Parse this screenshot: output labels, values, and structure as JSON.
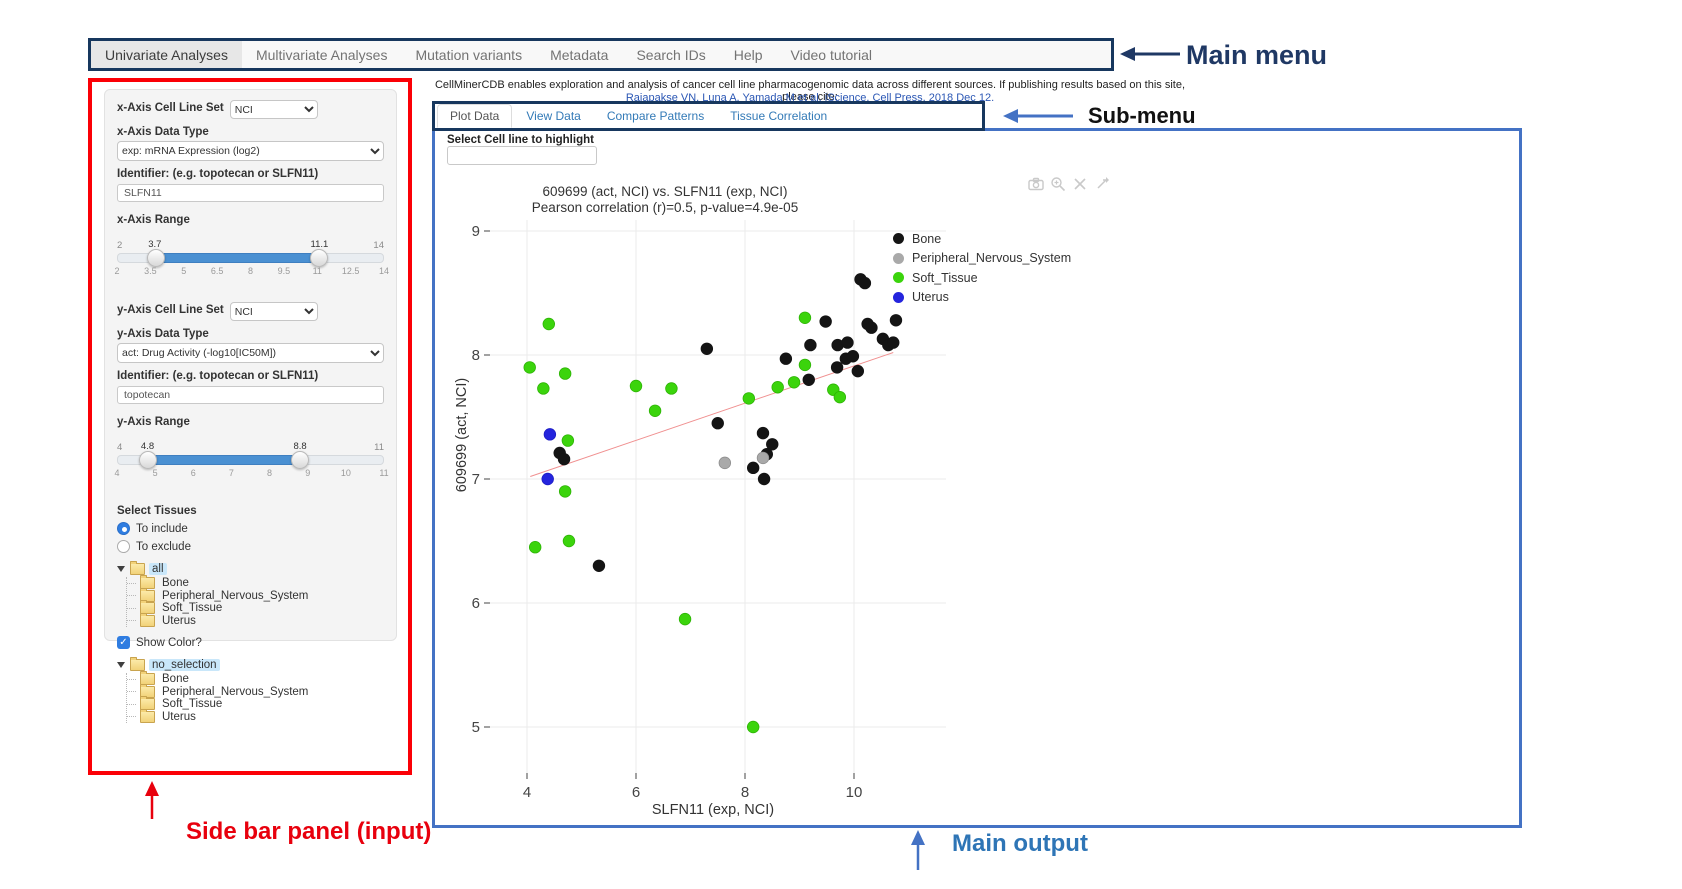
{
  "main_menu": {
    "annotation": "Main menu",
    "items": [
      {
        "label": "Univariate Analyses",
        "active": true
      },
      {
        "label": "Multivariate Analyses",
        "active": false
      },
      {
        "label": "Mutation variants",
        "active": false
      },
      {
        "label": "Metadata",
        "active": false
      },
      {
        "label": "Search IDs",
        "active": false
      },
      {
        "label": "Help",
        "active": false
      },
      {
        "label": "Video tutorial",
        "active": false
      }
    ]
  },
  "citation": {
    "line1": "CellMinerCDB enables exploration and analysis of cancer cell line pharmacogenomic data across different sources. If publishing results based on this site, please cite:",
    "line2": "Rajapakse VN, Luna A, Yamada M et al. iScience, Cell Press, 2018 Dec 12."
  },
  "submenu": {
    "annotation": "Sub-menu",
    "tabs": [
      {
        "label": "Plot Data",
        "active": true
      },
      {
        "label": "View Data",
        "active": false
      },
      {
        "label": "Compare Patterns",
        "active": false
      },
      {
        "label": "Tissue Correlation",
        "active": false
      }
    ]
  },
  "sidebar": {
    "annotation": "Side bar panel (input)",
    "x_axis": {
      "cell_line_set_label": "x-Axis Cell Line Set",
      "cell_line_set_value": "NCI",
      "data_type_label": "x-Axis Data Type",
      "data_type_value": "exp: mRNA Expression (log2)",
      "identifier_label": "Identifier: (e.g. topotecan or SLFN11)",
      "identifier_value": "SLFN11",
      "range_label": "x-Axis Range",
      "range": {
        "min": "2",
        "max": "14",
        "low": "3.7",
        "high": "11.1",
        "low_frac": 0.1417,
        "high_frac": 0.7583,
        "ticks": [
          "2",
          "3.5",
          "5",
          "6.5",
          "8",
          "9.5",
          "11",
          "12.5",
          "14"
        ]
      }
    },
    "y_axis": {
      "cell_line_set_label": "y-Axis Cell Line Set",
      "cell_line_set_value": "NCI",
      "data_type_label": "y-Axis Data Type",
      "data_type_value": "act: Drug Activity (-log10[IC50M])",
      "identifier_label": "Identifier: (e.g. topotecan or SLFN11)",
      "identifier_value": "topotecan",
      "range_label": "y-Axis Range",
      "range": {
        "min": "4",
        "max": "11",
        "low": "4.8",
        "high": "8.8",
        "low_frac": 0.1143,
        "high_frac": 0.6857,
        "ticks": [
          "4",
          "5",
          "6",
          "7",
          "8",
          "9",
          "10",
          "11"
        ]
      }
    },
    "tissues": {
      "label": "Select Tissues",
      "include_label": "To include",
      "exclude_label": "To exclude",
      "include_selected": true,
      "tree_all": {
        "root": "all",
        "children": [
          "Bone",
          "Peripheral_Nervous_System",
          "Soft_Tissue",
          "Uterus"
        ]
      },
      "show_color_label": "Show Color?",
      "show_color_checked": true,
      "tree_selection": {
        "root": "no_selection",
        "children": [
          "Bone",
          "Peripheral_Nervous_System",
          "Soft_Tissue",
          "Uterus"
        ]
      }
    }
  },
  "main_output": {
    "annotation": "Main output",
    "highlight_label": "Select Cell line to highlight",
    "highlight_value": "",
    "modebar_icons": [
      "camera-icon",
      "zoom-in-icon",
      "close-icon",
      "expand-icon"
    ]
  },
  "chart_data": {
    "type": "scatter",
    "title": "609699 (act, NCI) vs. SLFN11 (exp, NCI)",
    "subtitle": "Pearson correlation (r)=0.5, p-value=4.9e-05",
    "pearson_r": 0.5,
    "p_value": "4.9e-05",
    "xlabel": "SLFN11 (exp, NCI)",
    "ylabel": "609699 (act, NCI)",
    "xlim": [
      3.3,
      11.6
    ],
    "ylim": [
      4.6,
      9.1
    ],
    "xticks": [
      4,
      6,
      8,
      10
    ],
    "yticks": [
      5,
      6,
      7,
      8,
      9
    ],
    "grid": true,
    "legend_position": "right",
    "series": [
      {
        "name": "Bone",
        "color": "#141414",
        "stroke": "#141414",
        "points": [
          [
            4.6,
            7.21
          ],
          [
            4.68,
            7.16
          ],
          [
            5.32,
            6.3
          ],
          [
            7.3,
            8.05
          ],
          [
            7.5,
            7.45
          ],
          [
            8.33,
            7.37
          ],
          [
            8.5,
            7.28
          ],
          [
            8.4,
            7.2
          ],
          [
            8.15,
            7.09
          ],
          [
            8.35,
            7.0
          ],
          [
            8.75,
            7.97
          ],
          [
            9.17,
            7.8
          ],
          [
            9.2,
            8.08
          ],
          [
            9.48,
            8.27
          ],
          [
            9.69,
            7.9
          ],
          [
            9.7,
            8.08
          ],
          [
            9.88,
            8.1
          ],
          [
            9.85,
            7.97
          ],
          [
            9.98,
            7.99
          ],
          [
            10.07,
            7.87
          ],
          [
            10.12,
            8.61
          ],
          [
            10.2,
            8.58
          ],
          [
            10.25,
            8.25
          ],
          [
            10.32,
            8.22
          ],
          [
            10.77,
            8.28
          ],
          [
            10.53,
            8.13
          ],
          [
            10.63,
            8.08
          ],
          [
            10.72,
            8.1
          ]
        ]
      },
      {
        "name": "Peripheral_Nervous_System",
        "color": "#a9a9a9",
        "stroke": "#8d8d8d",
        "points": [
          [
            7.63,
            7.13
          ],
          [
            8.33,
            7.17
          ]
        ]
      },
      {
        "name": "Soft_Tissue",
        "color": "#3bd40c",
        "stroke": "#2db305",
        "points": [
          [
            4.4,
            8.25
          ],
          [
            4.05,
            7.9
          ],
          [
            4.3,
            7.73
          ],
          [
            4.7,
            7.85
          ],
          [
            6.0,
            7.75
          ],
          [
            6.35,
            7.55
          ],
          [
            6.65,
            7.73
          ],
          [
            4.75,
            7.31
          ],
          [
            4.7,
            6.9
          ],
          [
            4.15,
            6.45
          ],
          [
            4.77,
            6.5
          ],
          [
            6.9,
            5.87
          ],
          [
            8.15,
            5.0
          ],
          [
            8.07,
            7.65
          ],
          [
            8.6,
            7.74
          ],
          [
            8.9,
            7.78
          ],
          [
            9.1,
            8.3
          ],
          [
            9.1,
            7.92
          ],
          [
            9.62,
            7.72
          ],
          [
            9.74,
            7.66
          ]
        ]
      },
      {
        "name": "Uterus",
        "color": "#2424dd",
        "stroke": "#1d1dc4",
        "points": [
          [
            4.42,
            7.36
          ],
          [
            4.38,
            7.0
          ]
        ]
      }
    ],
    "trend_line": {
      "color": "#f09090",
      "x1": 4.06,
      "y1": 7.02,
      "x2": 10.72,
      "y2": 8.02
    }
  }
}
